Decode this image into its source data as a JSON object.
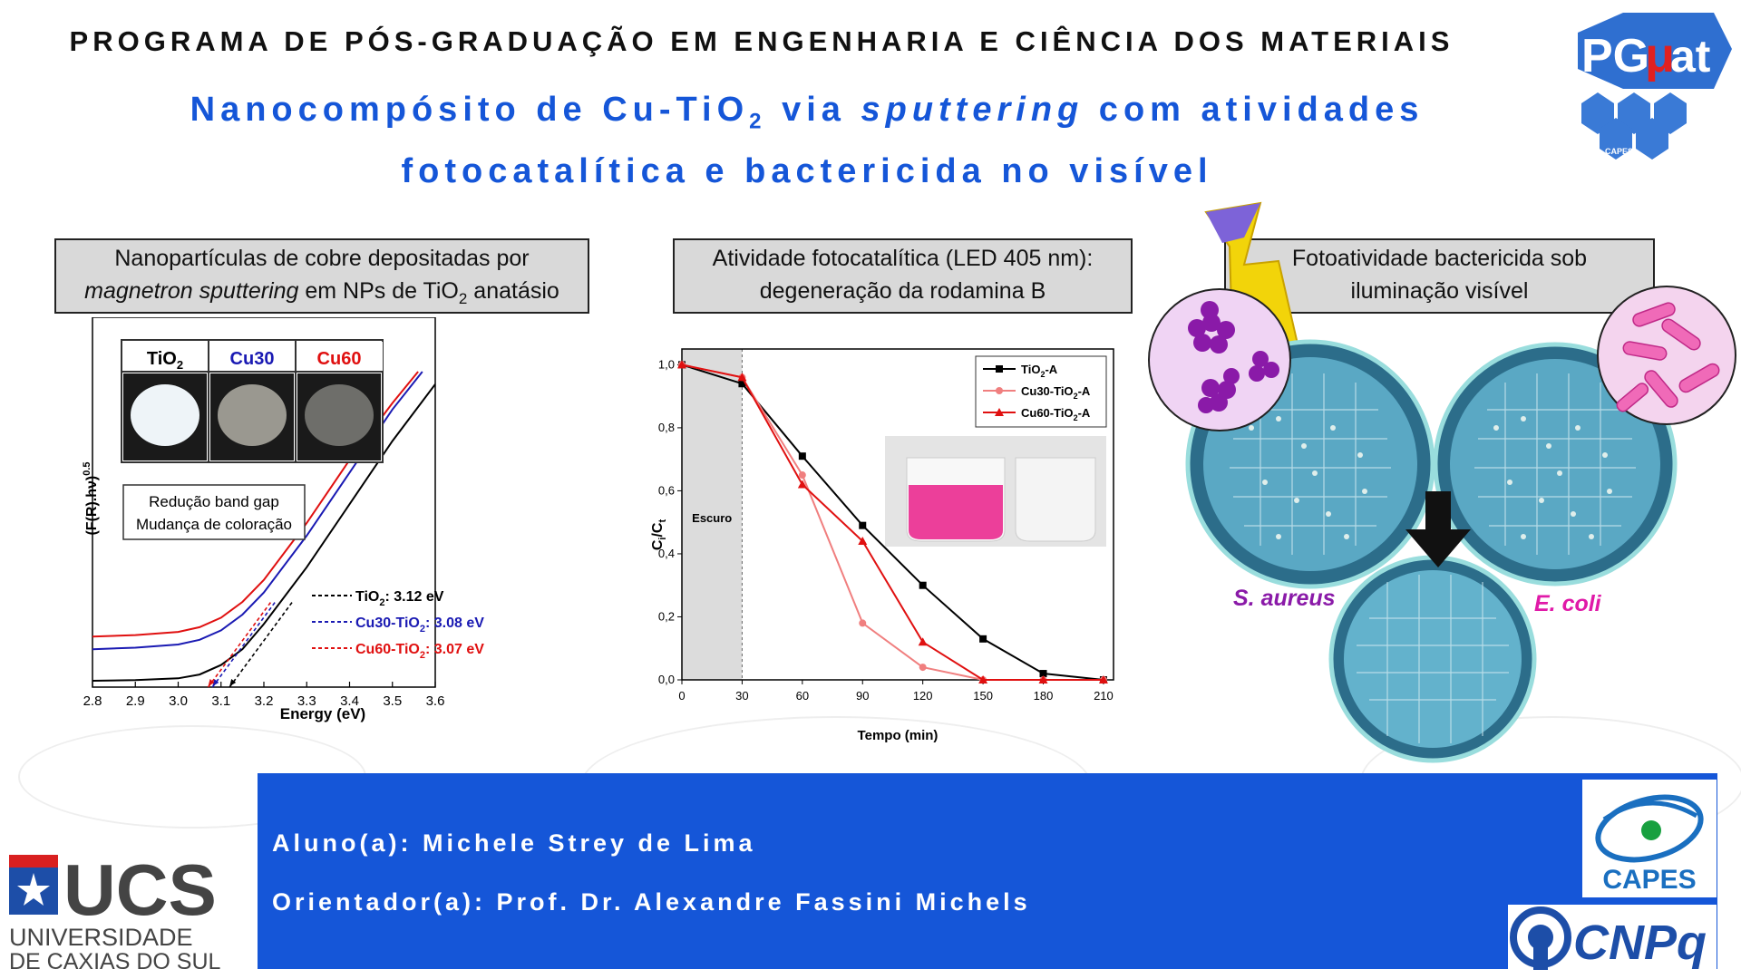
{
  "header": {
    "program": "PROGRAMA DE PÓS-GRADUAÇÃO EM ENGENHARIA E CIÊNCIA DOS MATERIAIS",
    "title_part1": "Nanocompósito de Cu-TiO",
    "title_sub": "2",
    "title_part2": " via ",
    "title_italic": "sputtering",
    "title_part3": " com atividades",
    "title_line2": "fotocatalítica e bactericida no visível",
    "logo_text_left": "PG",
    "logo_text_mu": "μ",
    "logo_text_right": "at",
    "logo_small": "CAPES"
  },
  "boxes": {
    "box1_line1": "Nanopartículas de cobre depositadas por",
    "box1_italic": "magnetron sputtering",
    "box1_rest_a": " em NPs de TiO",
    "box1_sub": "2",
    "box1_rest_b": " anatásio",
    "box2_line1": "Atividade fotocatalítica (LED 405 nm):",
    "box2_line2": "degeneração da rodamina B",
    "box3_line1": "Fotoatividade bactericida sob",
    "box3_line2": "iluminação visível"
  },
  "chart_data": [
    {
      "type": "line",
      "xlabel": "Energy (eV)",
      "ylabel": "(F(R).hν)",
      "ylabel_sup": "0.5",
      "x_ticks": [
        "2.8",
        "2.9",
        "3.0",
        "3.1",
        "3.2",
        "3.3",
        "3.4",
        "3.5",
        "3.6"
      ],
      "xlim": [
        2.8,
        3.6
      ],
      "samples": [
        {
          "label": "TiO",
          "sub": "2",
          "color": "#000000"
        },
        {
          "label": "Cu30",
          "sub": "",
          "color": "#1a1ab3"
        },
        {
          "label": "Cu60",
          "sub": "",
          "color": "#e01010"
        }
      ],
      "annotation_line1": "Redução band gap",
      "annotation_line2": "Mudança de coloração",
      "legend": [
        {
          "pre": "TiO",
          "sub": "2",
          "post": ": 3.12 eV",
          "color": "#000000",
          "band_gap": 3.12
        },
        {
          "pre": "Cu30-TiO",
          "sub": "2",
          "post": ": 3.08 eV",
          "color": "#1a1ab3",
          "band_gap": 3.08
        },
        {
          "pre": "Cu60-TiO",
          "sub": "2",
          "post": ": 3.07 eV",
          "color": "#e01010",
          "band_gap": 3.07
        }
      ],
      "series": [
        {
          "name": "TiO2: 3.12 eV",
          "color": "#000000",
          "x": [
            2.8,
            2.9,
            3.0,
            3.05,
            3.1,
            3.15,
            3.2,
            3.3,
            3.4,
            3.5,
            3.6
          ],
          "y": [
            0.02,
            0.022,
            0.028,
            0.04,
            0.07,
            0.12,
            0.2,
            0.38,
            0.58,
            0.78,
            0.96
          ]
        },
        {
          "name": "Cu30-TiO2: 3.08 eV",
          "color": "#1a1ab3",
          "x": [
            2.8,
            2.9,
            3.0,
            3.05,
            3.1,
            3.15,
            3.2,
            3.3,
            3.4,
            3.5,
            3.57
          ],
          "y": [
            0.12,
            0.125,
            0.135,
            0.15,
            0.18,
            0.23,
            0.3,
            0.48,
            0.68,
            0.88,
            1.0
          ]
        },
        {
          "name": "Cu60-TiO2: 3.07 eV",
          "color": "#e01010",
          "x": [
            2.8,
            2.9,
            3.0,
            3.05,
            3.1,
            3.15,
            3.2,
            3.3,
            3.4,
            3.5,
            3.56
          ],
          "y": [
            0.16,
            0.165,
            0.175,
            0.19,
            0.22,
            0.27,
            0.34,
            0.52,
            0.72,
            0.9,
            1.0
          ]
        }
      ]
    },
    {
      "type": "line",
      "xlabel": "Tempo (min)",
      "ylabel": "C",
      "ylabel_sub": "i",
      "ylabel_mid": "/C",
      "ylabel_sub2": "t",
      "x": [
        0,
        30,
        60,
        90,
        120,
        150,
        180,
        210
      ],
      "x_ticks": [
        "0",
        "30",
        "60",
        "90",
        "120",
        "150",
        "180",
        "210"
      ],
      "y_ticks": [
        "0,0",
        "0,2",
        "0,4",
        "0,6",
        "0,8",
        "1,0"
      ],
      "xlim": [
        0,
        215
      ],
      "ylim": [
        0,
        1.05
      ],
      "dark_region_label": "Escuro",
      "dark_region": [
        0,
        30
      ],
      "legend": [
        {
          "pre": "TiO",
          "sub": "2",
          "post": "-A",
          "color": "#000000",
          "marker": "square"
        },
        {
          "pre": "Cu30-TiO",
          "sub": "2",
          "post": "-A",
          "color": "#f07f7f",
          "marker": "circle"
        },
        {
          "pre": "Cu60-TiO",
          "sub": "2",
          "post": "-A",
          "color": "#e01010",
          "marker": "triangle"
        }
      ],
      "series": [
        {
          "name": "TiO2-A",
          "color": "#000000",
          "marker": "square",
          "values": [
            1.0,
            0.94,
            0.71,
            0.49,
            0.3,
            0.13,
            0.02,
            0.0
          ]
        },
        {
          "name": "Cu30-TiO2-A",
          "color": "#f07f7f",
          "marker": "circle",
          "values": [
            1.0,
            0.96,
            0.65,
            0.18,
            0.04,
            0.0,
            0.0,
            0.0
          ]
        },
        {
          "name": "Cu60-TiO2-A",
          "color": "#e01010",
          "marker": "triangle",
          "values": [
            1.0,
            0.96,
            0.62,
            0.44,
            0.12,
            0.0,
            0.0,
            0.0
          ]
        }
      ]
    }
  ],
  "bacteria": {
    "s_aureus": "S. aureus",
    "e_coli": "E. coli",
    "s_aureus_color": "#8a1aa8",
    "e_coli_color": "#e01aa8"
  },
  "footer": {
    "student": "Aluno(a): Michele Strey de Lima",
    "advisor": "Orientador(a): Prof. Dr. Alexandre Fassini Michels",
    "ucs": "UCS",
    "ucs_line1": "UNIVERSIDADE",
    "ucs_line2": "DE CAXIAS DO SUL",
    "capes": "CAPES",
    "cnpq": "CNPq"
  },
  "colors": {
    "accent": "#1556d8",
    "box": "#d9d9d9"
  }
}
